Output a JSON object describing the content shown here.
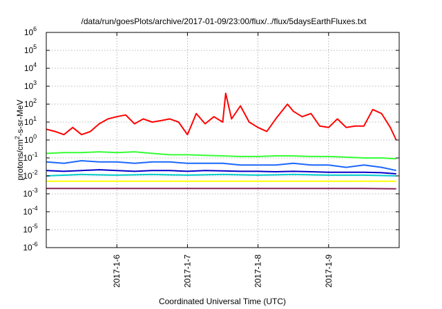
{
  "chart_data": {
    "type": "line",
    "title": "/data/run/goesPlots/archive/2017-01-09/23:00/flux/../flux/5daysEarthFluxes.txt",
    "xlabel": "Coordinated Universal Time (UTC)",
    "ylabel": {
      "base": "protons/cm",
      "sup": "2",
      "rest": "-s-sr-MeV"
    },
    "y_scale": "log",
    "ylim": [
      1e-06,
      1000000.0
    ],
    "y_ticks": [
      {
        "value": 1e-06,
        "base": "10",
        "exp": "-6"
      },
      {
        "value": 1e-05,
        "base": "10",
        "exp": "-5"
      },
      {
        "value": 0.0001,
        "base": "10",
        "exp": "-4"
      },
      {
        "value": 0.001,
        "base": "10",
        "exp": "-3"
      },
      {
        "value": 0.01,
        "base": "10",
        "exp": "-2"
      },
      {
        "value": 0.1,
        "base": "10",
        "exp": "-1"
      },
      {
        "value": 1,
        "base": "10",
        "exp": "0"
      },
      {
        "value": 10,
        "base": "10",
        "exp": "1"
      },
      {
        "value": 100,
        "base": "10",
        "exp": "2"
      },
      {
        "value": 1000,
        "base": "10",
        "exp": "3"
      },
      {
        "value": 10000,
        "base": "10",
        "exp": "4"
      },
      {
        "value": 100000,
        "base": "10",
        "exp": "5"
      },
      {
        "value": 1000000,
        "base": "10",
        "exp": "6"
      }
    ],
    "xlim": [
      "2017-01-05T00:00",
      "2017-01-10T00:00"
    ],
    "x_ticks": [
      {
        "value": "2017-01-06T00:00",
        "label": "2017-1-6"
      },
      {
        "value": "2017-01-07T00:00",
        "label": "2017-1-7"
      },
      {
        "value": "2017-01-08T00:00",
        "label": "2017-1-8"
      },
      {
        "value": "2017-01-09T00:00",
        "label": "2017-1-9"
      }
    ],
    "grid": true,
    "legend": "none",
    "series": [
      {
        "color": "#ff0000",
        "x": [
          "2017-01-05T00:00",
          "2017-01-05T03:00",
          "2017-01-05T06:00",
          "2017-01-05T09:00",
          "2017-01-05T12:00",
          "2017-01-05T15:00",
          "2017-01-05T18:00",
          "2017-01-05T21:00",
          "2017-01-06T00:00",
          "2017-01-06T03:00",
          "2017-01-06T06:00",
          "2017-01-06T09:00",
          "2017-01-06T12:00",
          "2017-01-06T15:00",
          "2017-01-06T18:00",
          "2017-01-06T21:00",
          "2017-01-07T00:00",
          "2017-01-07T03:00",
          "2017-01-07T06:00",
          "2017-01-07T09:00",
          "2017-01-07T12:00",
          "2017-01-07T13:00",
          "2017-01-07T15:00",
          "2017-01-07T18:00",
          "2017-01-07T21:00",
          "2017-01-08T00:00",
          "2017-01-08T03:00",
          "2017-01-08T06:00",
          "2017-01-08T10:00",
          "2017-01-08T12:00",
          "2017-01-08T15:00",
          "2017-01-08T18:00",
          "2017-01-08T21:00",
          "2017-01-09T00:00",
          "2017-01-09T03:00",
          "2017-01-09T06:00",
          "2017-01-09T09:00",
          "2017-01-09T12:00",
          "2017-01-09T15:00",
          "2017-01-09T18:00",
          "2017-01-09T21:00",
          "2017-01-09T23:00"
        ],
        "y": [
          4,
          3,
          2,
          5,
          2,
          3,
          8,
          15,
          20,
          25,
          8,
          15,
          10,
          12,
          15,
          10,
          2,
          30,
          8,
          20,
          10,
          400,
          15,
          80,
          10,
          5,
          3,
          15,
          100,
          40,
          20,
          30,
          6,
          5,
          15,
          5,
          6,
          6,
          50,
          30,
          5,
          1
        ]
      },
      {
        "color": "#33ff33",
        "x": [
          "2017-01-05T00:00",
          "2017-01-05T06:00",
          "2017-01-05T12:00",
          "2017-01-05T18:00",
          "2017-01-06T00:00",
          "2017-01-06T06:00",
          "2017-01-06T12:00",
          "2017-01-06T18:00",
          "2017-01-07T00:00",
          "2017-01-07T06:00",
          "2017-01-07T12:00",
          "2017-01-07T18:00",
          "2017-01-08T00:00",
          "2017-01-08T06:00",
          "2017-01-08T12:00",
          "2017-01-08T18:00",
          "2017-01-09T00:00",
          "2017-01-09T06:00",
          "2017-01-09T12:00",
          "2017-01-09T18:00",
          "2017-01-09T23:00"
        ],
        "y": [
          0.18,
          0.2,
          0.2,
          0.22,
          0.2,
          0.22,
          0.18,
          0.15,
          0.15,
          0.14,
          0.13,
          0.12,
          0.12,
          0.13,
          0.13,
          0.12,
          0.12,
          0.11,
          0.1,
          0.1,
          0.09
        ]
      },
      {
        "color": "#1a66ff",
        "x": [
          "2017-01-05T00:00",
          "2017-01-05T06:00",
          "2017-01-05T12:00",
          "2017-01-05T18:00",
          "2017-01-06T00:00",
          "2017-01-06T06:00",
          "2017-01-06T12:00",
          "2017-01-06T18:00",
          "2017-01-07T00:00",
          "2017-01-07T06:00",
          "2017-01-07T12:00",
          "2017-01-07T18:00",
          "2017-01-08T00:00",
          "2017-01-08T06:00",
          "2017-01-08T12:00",
          "2017-01-08T18:00",
          "2017-01-09T00:00",
          "2017-01-09T06:00",
          "2017-01-09T12:00",
          "2017-01-09T18:00",
          "2017-01-09T23:00"
        ],
        "y": [
          0.06,
          0.05,
          0.07,
          0.06,
          0.06,
          0.05,
          0.06,
          0.06,
          0.05,
          0.05,
          0.05,
          0.04,
          0.04,
          0.04,
          0.05,
          0.04,
          0.04,
          0.03,
          0.04,
          0.03,
          0.02
        ]
      },
      {
        "color": "#00cccc",
        "x": [
          "2017-01-05T00:00",
          "2017-01-05T12:00",
          "2017-01-06T00:00",
          "2017-01-06T12:00",
          "2017-01-07T00:00",
          "2017-01-07T12:00",
          "2017-01-08T00:00",
          "2017-01-08T12:00",
          "2017-01-09T00:00",
          "2017-01-09T12:00",
          "2017-01-09T23:00"
        ],
        "y": [
          0.01,
          0.012,
          0.011,
          0.012,
          0.011,
          0.012,
          0.011,
          0.012,
          0.011,
          0.011,
          0.01
        ]
      },
      {
        "color": "#0000cc",
        "x": [
          "2017-01-05T00:00",
          "2017-01-05T06:00",
          "2017-01-05T12:00",
          "2017-01-05T18:00",
          "2017-01-06T00:00",
          "2017-01-06T06:00",
          "2017-01-06T12:00",
          "2017-01-06T18:00",
          "2017-01-07T00:00",
          "2017-01-07T06:00",
          "2017-01-07T12:00",
          "2017-01-07T18:00",
          "2017-01-08T00:00",
          "2017-01-08T06:00",
          "2017-01-08T12:00",
          "2017-01-08T18:00",
          "2017-01-09T00:00",
          "2017-01-09T06:00",
          "2017-01-09T12:00",
          "2017-01-09T18:00",
          "2017-01-09T23:00"
        ],
        "y": [
          0.02,
          0.018,
          0.02,
          0.022,
          0.02,
          0.018,
          0.02,
          0.02,
          0.018,
          0.02,
          0.019,
          0.018,
          0.018,
          0.017,
          0.018,
          0.017,
          0.016,
          0.016,
          0.016,
          0.015,
          0.013
        ]
      },
      {
        "color": "#ffff00",
        "x": [
          "2017-01-05T00:00",
          "2017-01-05T12:00",
          "2017-01-06T00:00",
          "2017-01-06T12:00",
          "2017-01-07T00:00",
          "2017-01-07T12:00",
          "2017-01-08T00:00",
          "2017-01-08T12:00",
          "2017-01-09T00:00",
          "2017-01-09T12:00",
          "2017-01-09T23:00"
        ],
        "y": [
          0.005,
          0.005,
          0.005,
          0.005,
          0.005,
          0.005,
          0.005,
          0.005,
          0.005,
          0.005,
          0.005
        ]
      },
      {
        "color": "#882255",
        "x": [
          "2017-01-05T00:00",
          "2017-01-05T12:00",
          "2017-01-06T00:00",
          "2017-01-06T12:00",
          "2017-01-07T00:00",
          "2017-01-07T12:00",
          "2017-01-08T00:00",
          "2017-01-08T12:00",
          "2017-01-09T00:00",
          "2017-01-09T12:00",
          "2017-01-09T23:00"
        ],
        "y": [
          0.002,
          0.002,
          0.002,
          0.002,
          0.002,
          0.002,
          0.002,
          0.002,
          0.002,
          0.002,
          0.0019
        ]
      }
    ]
  }
}
